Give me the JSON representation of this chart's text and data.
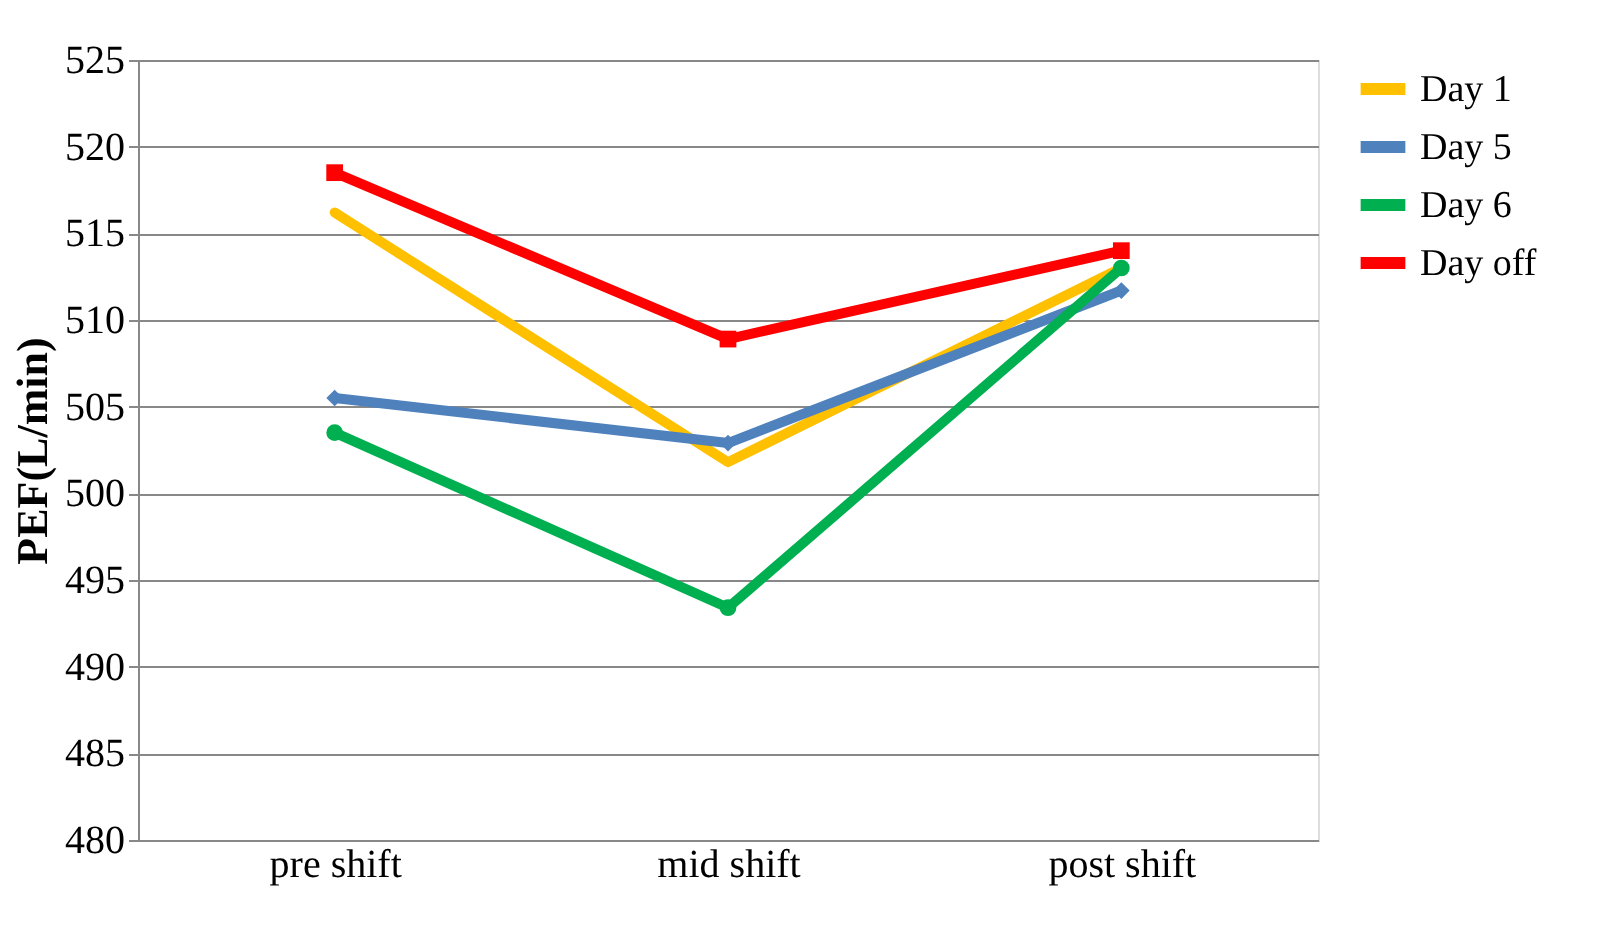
{
  "chart_data": {
    "type": "line",
    "ylabel": "PEF(L/min)",
    "categories": [
      "pre shift",
      "mid shift",
      "post shift"
    ],
    "ylim": [
      480,
      525
    ],
    "yticks": [
      480,
      485,
      490,
      495,
      500,
      505,
      510,
      515,
      520,
      525
    ],
    "grid": "y",
    "legend": "right",
    "line_style": "solid",
    "series": [
      {
        "name": "Day 1",
        "color": "#ffc000",
        "values": [
          516.2,
          501.8,
          513.0
        ],
        "marker": "none"
      },
      {
        "name": "Day 5",
        "color": "#4f81bd",
        "values": [
          505.5,
          502.9,
          511.7
        ],
        "marker": "diamond"
      },
      {
        "name": "Day 6",
        "color": "#00b050",
        "values": [
          503.5,
          493.4,
          513.0
        ],
        "marker": "circle"
      },
      {
        "name": "Day off",
        "color": "#ff0000",
        "values": [
          518.5,
          508.9,
          514.0
        ],
        "marker": "square"
      }
    ]
  }
}
